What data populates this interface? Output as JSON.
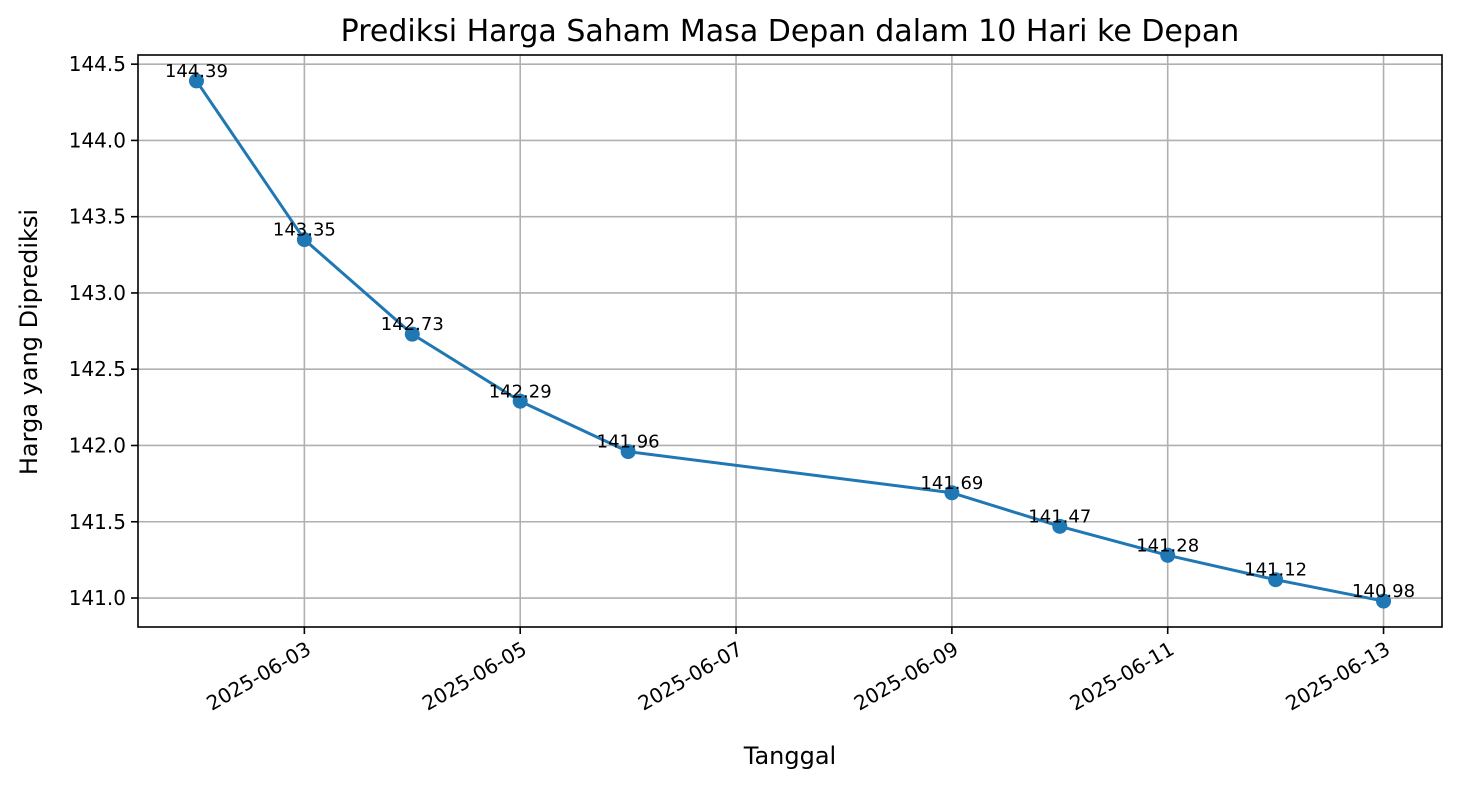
{
  "chart_data": {
    "type": "line",
    "title": "Prediksi Harga Saham Masa Depan dalam 10 Hari ke Depan",
    "xlabel": "Tanggal",
    "ylabel": "Harga yang Diprediksi",
    "x": [
      "2025-06-02",
      "2025-06-03",
      "2025-06-04",
      "2025-06-05",
      "2025-06-06",
      "2025-06-09",
      "2025-06-10",
      "2025-06-11",
      "2025-06-12",
      "2025-06-13"
    ],
    "series": [
      {
        "name": "",
        "values": [
          144.39,
          143.35,
          142.73,
          142.29,
          141.96,
          141.69,
          141.47,
          141.28,
          141.12,
          140.98
        ]
      }
    ],
    "data_labels": [
      "144.39",
      "143.35",
      "142.73",
      "142.29",
      "141.96",
      "141.69",
      "141.47",
      "141.28",
      "141.12",
      "140.98"
    ],
    "x_ticks": [
      "2025-06-03",
      "2025-06-05",
      "2025-06-07",
      "2025-06-09",
      "2025-06-11",
      "2025-06-13"
    ],
    "y_ticks": [
      "141.0",
      "141.5",
      "142.0",
      "142.5",
      "143.0",
      "143.5",
      "144.0",
      "144.5"
    ],
    "xlim": [
      "2025-06-01 11:00",
      "2025-06-13 13:00"
    ],
    "ylim": [
      140.81,
      144.56
    ],
    "grid": true,
    "line_color": "#1f77b4",
    "marker_color": "#1f77b4"
  }
}
